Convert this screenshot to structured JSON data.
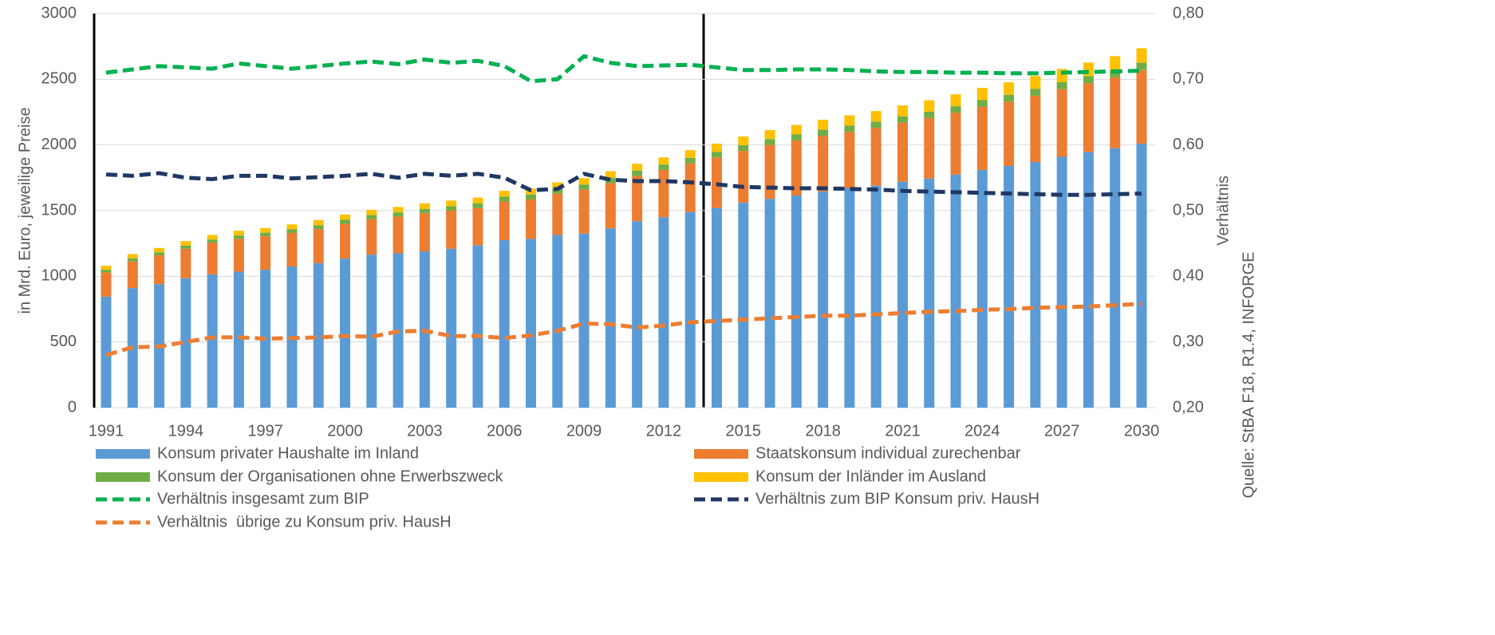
{
  "chart_data": {
    "type": "bar",
    "stacked": true,
    "y_label": "in Mrd. Euro, jeweilige Preise",
    "y2_label": "Verhältnis",
    "source": "Quelle: StBA F18, R1.4, INFORGE",
    "categories": [
      "1991",
      null,
      null,
      "1994",
      null,
      null,
      "1997",
      null,
      null,
      "2000",
      null,
      null,
      "2003",
      null,
      null,
      "2006",
      null,
      null,
      "2009",
      null,
      null,
      "2012",
      null,
      null,
      "2015",
      null,
      null,
      "2018",
      null,
      null,
      "2021",
      null,
      null,
      "2024",
      null,
      null,
      "2027",
      null,
      null,
      "2030"
    ],
    "ylim": [
      0,
      3000
    ],
    "yticks": [
      0,
      500,
      1000,
      1500,
      2000,
      2500,
      3000
    ],
    "y2lim": [
      0.2,
      0.8
    ],
    "y2ticks": [
      {
        "value": 0.2,
        "label": "0,20"
      },
      {
        "value": 0.3,
        "label": "0,30"
      },
      {
        "value": 0.4,
        "label": "0,40"
      },
      {
        "value": 0.5,
        "label": "0,50"
      },
      {
        "value": 0.6,
        "label": "0,60"
      },
      {
        "value": 0.7,
        "label": "0,70"
      },
      {
        "value": 0.8,
        "label": "0,80"
      }
    ],
    "grid": true,
    "series": [
      {
        "name": "Konsum privater Haushalte im Inland",
        "type": "bar",
        "color": "#5b9bd5",
        "values": [
          845,
          910,
          940,
          985,
          1015,
          1035,
          1050,
          1075,
          1100,
          1135,
          1165,
          1175,
          1190,
          1210,
          1235,
          1275,
          1285,
          1315,
          1325,
          1365,
          1420,
          1450,
          1490,
          1520,
          1560,
          1590,
          1615,
          1645,
          1670,
          1690,
          1720,
          1745,
          1775,
          1810,
          1840,
          1870,
          1910,
          1945,
          1975,
          2010
        ]
      },
      {
        "name": "Staatskonsum individual zurechenbar",
        "type": "bar",
        "color": "#ed7d31",
        "values": [
          185,
          205,
          220,
          225,
          240,
          250,
          255,
          255,
          260,
          265,
          270,
          280,
          290,
          290,
          285,
          295,
          300,
          315,
          335,
          345,
          345,
          360,
          370,
          385,
          395,
          410,
          420,
          425,
          430,
          440,
          450,
          460,
          470,
          480,
          490,
          505,
          515,
          525,
          540,
          560
        ]
      },
      {
        "name": "Konsum der Organisationen ohne Erwerbszweck",
        "type": "bar",
        "color": "#70ad47",
        "values": [
          20,
          22,
          23,
          24,
          25,
          26,
          27,
          28,
          29,
          30,
          31,
          32,
          33,
          34,
          35,
          36,
          37,
          38,
          39,
          40,
          40,
          41,
          42,
          43,
          44,
          45,
          45,
          46,
          47,
          48,
          48,
          49,
          50,
          51,
          52,
          52,
          53,
          54,
          55,
          56
        ]
      },
      {
        "name": "Konsum der Inländer im Ausland",
        "type": "bar",
        "color": "#ffc000",
        "values": [
          30,
          32,
          33,
          34,
          35,
          36,
          36,
          37,
          38,
          40,
          40,
          41,
          42,
          43,
          44,
          45,
          46,
          47,
          48,
          50,
          52,
          54,
          58,
          62,
          65,
          68,
          72,
          75,
          78,
          80,
          83,
          86,
          90,
          93,
          95,
          98,
          100,
          103,
          106,
          110
        ]
      },
      {
        "name": "Verhältnis insgesamt zum BIP",
        "type": "line",
        "axis": "y2",
        "color": "#00b050",
        "values": [
          0.71,
          0.715,
          0.72,
          0.718,
          0.716,
          0.724,
          0.72,
          0.716,
          0.72,
          0.724,
          0.727,
          0.723,
          0.73,
          0.725,
          0.728,
          0.72,
          0.697,
          0.7,
          0.735,
          0.725,
          0.72,
          0.721,
          0.722,
          0.718,
          0.714,
          0.714,
          0.715,
          0.715,
          0.714,
          0.712,
          0.711,
          0.711,
          0.71,
          0.71,
          0.709,
          0.709,
          0.71,
          0.711,
          0.712,
          0.713
        ]
      },
      {
        "name": "Verhältnis zum BIP Konsum priv. HausH",
        "type": "line",
        "axis": "y2",
        "color": "#203864",
        "values": [
          0.555,
          0.553,
          0.557,
          0.55,
          0.548,
          0.553,
          0.553,
          0.549,
          0.551,
          0.553,
          0.556,
          0.55,
          0.556,
          0.553,
          0.556,
          0.55,
          0.531,
          0.533,
          0.556,
          0.547,
          0.545,
          0.545,
          0.543,
          0.54,
          0.536,
          0.535,
          0.534,
          0.534,
          0.533,
          0.532,
          0.53,
          0.529,
          0.528,
          0.527,
          0.526,
          0.525,
          0.524,
          0.524,
          0.525,
          0.526
        ]
      },
      {
        "name": "Verhältnis  übrige zu Konsum priv. HausH",
        "type": "line",
        "axis": "y2",
        "color": "#ed7d31",
        "values": [
          0.28,
          0.292,
          0.293,
          0.3,
          0.307,
          0.307,
          0.305,
          0.306,
          0.307,
          0.309,
          0.308,
          0.316,
          0.317,
          0.309,
          0.309,
          0.306,
          0.31,
          0.317,
          0.328,
          0.327,
          0.322,
          0.325,
          0.33,
          0.332,
          0.334,
          0.336,
          0.338,
          0.34,
          0.34,
          0.342,
          0.344,
          0.346,
          0.347,
          0.349,
          0.35,
          0.352,
          0.353,
          0.354,
          0.356,
          0.358
        ]
      }
    ]
  }
}
